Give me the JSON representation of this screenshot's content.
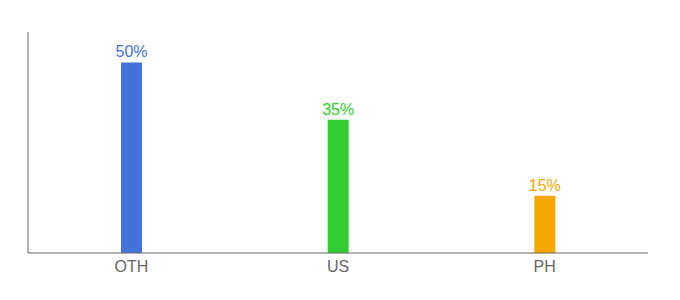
{
  "chart_data": {
    "type": "bar",
    "categories": [
      "OTH",
      "US",
      "PH"
    ],
    "values": [
      50,
      35,
      15
    ],
    "value_labels": [
      "50%",
      "35%",
      "15%"
    ],
    "colors": [
      "#4472db",
      "#33cc33",
      "#f5a800"
    ],
    "ylim": [
      0,
      58
    ],
    "data_labels": true,
    "tick_labels": "x",
    "grid": false
  }
}
